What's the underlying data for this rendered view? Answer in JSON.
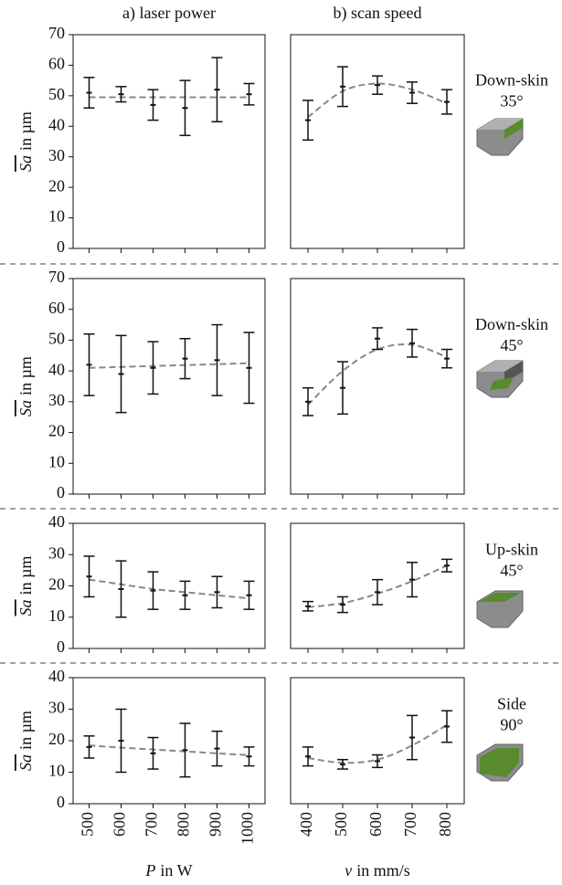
{
  "chart_data": [
    {
      "type": "errorbar",
      "title": "a) laser power",
      "ylabel": {
        "symbol": "Sa",
        "text": "in µm"
      },
      "x": [
        500,
        600,
        700,
        800,
        900,
        1000
      ],
      "values": [
        51,
        50.5,
        47,
        46,
        52,
        50.5
      ],
      "errors": [
        5,
        2.5,
        5,
        9,
        10.5,
        3.5
      ],
      "fit": [
        49.5,
        49.5,
        49.5,
        49.5,
        49.5,
        49.5
      ],
      "xlim": [
        450,
        1050
      ],
      "ylim": [
        0,
        70
      ],
      "yticks": [
        0,
        10,
        20,
        30,
        40,
        50,
        60,
        70
      ]
    },
    {
      "type": "errorbar",
      "title": "b) scan speed",
      "annotation": [
        "Down-skin",
        "35°"
      ],
      "x": [
        400,
        500,
        600,
        700,
        800
      ],
      "values": [
        42,
        53,
        53.5,
        51,
        48
      ],
      "errors": [
        6.5,
        6.5,
        3,
        3.5,
        4
      ],
      "fit": [
        43,
        51.5,
        54,
        52,
        47.5
      ],
      "xlim": [
        350,
        850
      ],
      "ylim": [
        0,
        70
      ]
    },
    {
      "type": "errorbar",
      "ylabel": {
        "symbol": "Sa",
        "text": "in µm"
      },
      "x": [
        500,
        600,
        700,
        800,
        900,
        1000
      ],
      "values": [
        42,
        39,
        41,
        44,
        43.5,
        41
      ],
      "errors": [
        10,
        12.5,
        8.5,
        6.5,
        11.5,
        11.5
      ],
      "fit": [
        41,
        41.3,
        41.6,
        41.9,
        42.2,
        42.5
      ],
      "xlim": [
        450,
        1050
      ],
      "ylim": [
        0,
        70
      ],
      "yticks": [
        0,
        10,
        20,
        30,
        40,
        50,
        60,
        70
      ]
    },
    {
      "type": "errorbar",
      "annotation": [
        "Down-skin",
        "45°"
      ],
      "x": [
        400,
        500,
        600,
        700,
        800
      ],
      "values": [
        30,
        34.5,
        50.5,
        49,
        44
      ],
      "errors": [
        4.5,
        8.5,
        3.5,
        4.5,
        3
      ],
      "fit": [
        29,
        40,
        47,
        48.5,
        44.5
      ],
      "xlim": [
        350,
        850
      ],
      "ylim": [
        0,
        70
      ]
    },
    {
      "type": "errorbar",
      "ylabel": {
        "symbol": "Sa",
        "text": "in µm"
      },
      "x": [
        500,
        600,
        700,
        800,
        900,
        1000
      ],
      "values": [
        23,
        19,
        18.5,
        17,
        18,
        17
      ],
      "errors": [
        6.5,
        9,
        6,
        4.5,
        5,
        4.5
      ],
      "fit": [
        22,
        20.5,
        19,
        18,
        17,
        16
      ],
      "xlim": [
        450,
        1050
      ],
      "ylim": [
        0,
        40
      ],
      "yticks": [
        0,
        10,
        20,
        30,
        40
      ]
    },
    {
      "type": "errorbar",
      "annotation": [
        "Up-skin",
        "45°"
      ],
      "x": [
        400,
        500,
        600,
        700,
        800
      ],
      "values": [
        13.5,
        14,
        18,
        22,
        26.5
      ],
      "errors": [
        1.5,
        2.5,
        4,
        5.5,
        2
      ],
      "fit": [
        13.2,
        14.5,
        17.5,
        21.5,
        26.5
      ],
      "xlim": [
        350,
        850
      ],
      "ylim": [
        0,
        40
      ]
    },
    {
      "type": "errorbar",
      "ylabel": {
        "symbol": "Sa",
        "text": "in µm"
      },
      "xlabel": {
        "symbol": "P",
        "text": "in W"
      },
      "x": [
        500,
        600,
        700,
        800,
        900,
        1000
      ],
      "values": [
        18,
        20,
        16,
        17,
        17.5,
        15
      ],
      "errors": [
        3.5,
        10,
        5,
        8.5,
        5.5,
        3
      ],
      "fit": [
        18.5,
        17.8,
        17.2,
        16.6,
        16,
        15.4
      ],
      "xlim": [
        450,
        1050
      ],
      "ylim": [
        0,
        40
      ],
      "yticks": [
        0,
        10,
        20,
        30,
        40
      ],
      "xticks": [
        500,
        600,
        700,
        800,
        900,
        1000
      ]
    },
    {
      "type": "errorbar",
      "annotation": [
        "Side",
        "90°"
      ],
      "xlabel": {
        "symbol": "v",
        "text": "in mm/s"
      },
      "x": [
        400,
        500,
        600,
        700,
        800
      ],
      "values": [
        15,
        12.5,
        13.5,
        21,
        24.5
      ],
      "errors": [
        3,
        1.5,
        2,
        7,
        5
      ],
      "fit": [
        14.5,
        13,
        14,
        18.5,
        25
      ],
      "xlim": [
        350,
        850
      ],
      "ylim": [
        0,
        40
      ],
      "xticks": [
        400,
        500,
        600,
        700,
        800
      ]
    }
  ]
}
